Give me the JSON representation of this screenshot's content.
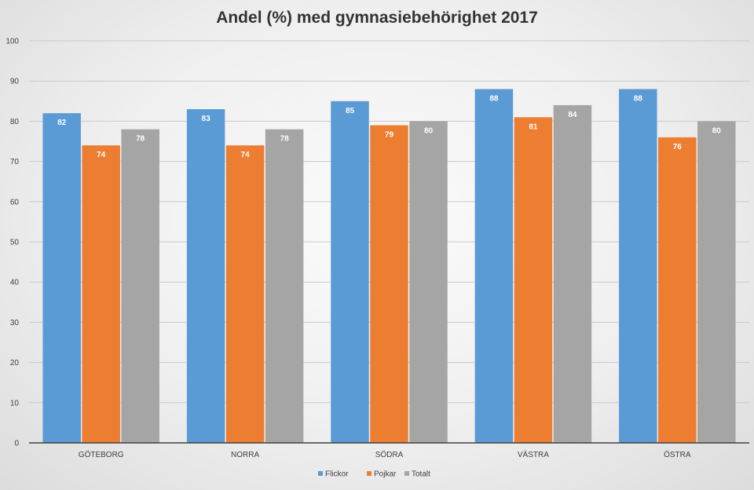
{
  "chart_data": {
    "type": "bar",
    "title": "Andel (%) med gymnasiebehörighet 2017",
    "categories": [
      "GÖTEBORG",
      "NORRA",
      "SÖDRA",
      "VÄSTRA",
      "ÖSTRA"
    ],
    "series": [
      {
        "name": "Flickor",
        "color": "#5b9bd5",
        "values": [
          82,
          83,
          85,
          88,
          88
        ]
      },
      {
        "name": "Pojkar",
        "color": "#ed7d31",
        "values": [
          74,
          74,
          79,
          81,
          76
        ]
      },
      {
        "name": "Totalt",
        "color": "#a5a5a5",
        "values": [
          78,
          78,
          80,
          84,
          80
        ]
      }
    ],
    "ylim": [
      0,
      100
    ],
    "yticks": [
      0,
      10,
      20,
      30,
      40,
      50,
      60,
      70,
      80,
      90,
      100
    ],
    "xlabel": "",
    "ylabel": "",
    "grid": true,
    "legend": "bottom"
  }
}
